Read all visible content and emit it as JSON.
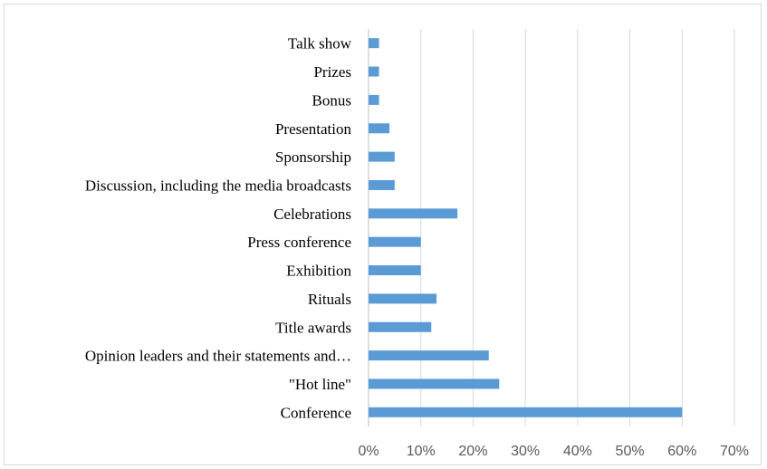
{
  "chart_data": {
    "type": "bar",
    "orientation": "horizontal",
    "categories": [
      "Conference",
      "\"Hot line\"",
      "Opinion leaders and their statements and…",
      "Title awards",
      "Rituals",
      "Exhibition",
      "Press conference",
      "Celebrations",
      "Discussion, including the media broadcasts",
      "Sponsorship",
      "Presentation",
      "Bonus",
      "Prizes",
      "Talk show"
    ],
    "values": [
      0.6,
      0.25,
      0.23,
      0.12,
      0.13,
      0.1,
      0.1,
      0.17,
      0.05,
      0.05,
      0.04,
      0.02,
      0.02,
      0.02
    ],
    "xlim": [
      0,
      0.7
    ],
    "x_ticks": [
      "0%",
      "10%",
      "20%",
      "30%",
      "40%",
      "50%",
      "60%",
      "70%"
    ],
    "grid": "vertical",
    "legend": "none",
    "bar_color": "#5b9bd5",
    "grid_color": "#d9d9d9",
    "title": "",
    "xlabel": "",
    "ylabel": ""
  }
}
